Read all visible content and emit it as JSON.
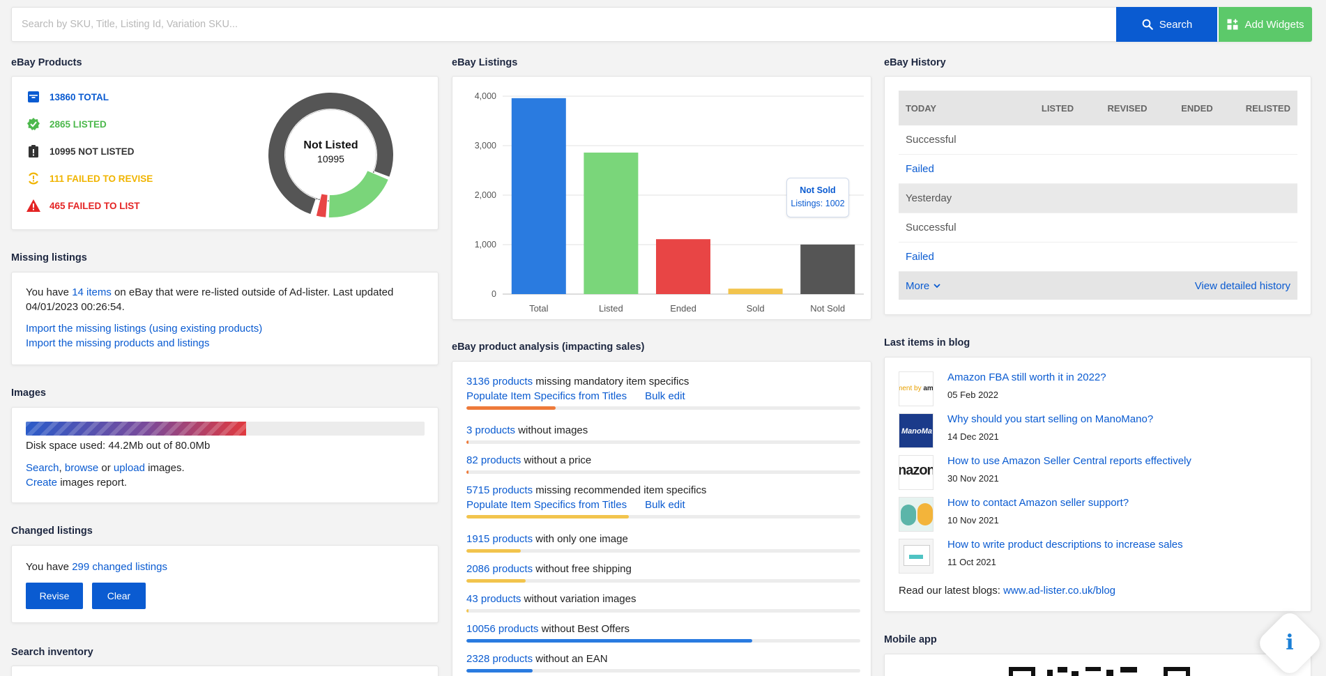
{
  "search": {
    "placeholder": "Search by SKU, Title, Listing Id, Variation SKU...",
    "search_label": "Search",
    "add_widgets_label": "Add Widgets"
  },
  "products": {
    "title": "eBay Products",
    "stats": [
      {
        "label": "13860 TOTAL",
        "color": "#0a5bd1",
        "icon": "archive-icon"
      },
      {
        "label": "2865 LISTED",
        "color": "#4cb84c",
        "icon": "check-badge-icon"
      },
      {
        "label": "10995 NOT LISTED",
        "color": "#333333",
        "icon": "clipboard-alert-icon"
      },
      {
        "label": "111 FAILED TO REVISE",
        "color": "#f0b400",
        "icon": "sync-alert-icon"
      },
      {
        "label": "465 FAILED TO LIST",
        "color": "#e42424",
        "icon": "warning-icon"
      }
    ],
    "donut": {
      "center_label": "Not Listed",
      "center_value": "10995",
      "segments": [
        {
          "name": "Listed",
          "value": 2865,
          "color": "#7ad57a"
        },
        {
          "name": "Failed to list",
          "value": 465,
          "color": "#e84545"
        },
        {
          "name": "Failed to revise",
          "value": 111,
          "color": "#f2c44d"
        },
        {
          "name": "Not listed",
          "value": 10995,
          "color": "#555555"
        }
      ]
    }
  },
  "missing": {
    "title": "Missing listings",
    "text_before": "You have ",
    "items_link": "14 items",
    "text_after": " on eBay that were re-listed outside of Ad-lister. Last updated 04/01/2023 00:26:54.",
    "link1": "Import the missing listings (using existing products)",
    "link2": "Import the missing products and listings"
  },
  "images": {
    "title": "Images",
    "used_fraction": 0.553,
    "disk_text": "Disk space used: 44.2Mb out of 80.0Mb",
    "search_link": "Search",
    "comma": ", ",
    "browse_link": "browse",
    "or_text": " or ",
    "upload_link": "upload",
    "images_text": " images.",
    "create_link": "Create",
    "report_text": " images report."
  },
  "changed": {
    "title": "Changed listings",
    "text_before": "You have ",
    "link": "299 changed listings",
    "revise_label": "Revise",
    "clear_label": "Clear"
  },
  "search_inventory": {
    "title": "Search inventory"
  },
  "listings": {
    "title": "eBay Listings",
    "tooltip": {
      "title": "Not Sold",
      "value": "Listings: 1002"
    }
  },
  "chart_data": {
    "type": "bar",
    "title": "",
    "categories": [
      "Total",
      "Listed",
      "Ended",
      "Sold",
      "Not Sold"
    ],
    "values": [
      3960,
      2860,
      1110,
      110,
      1002
    ],
    "colors": [
      "#2a7be0",
      "#7ad67a",
      "#e84545",
      "#f2c44d",
      "#555555"
    ],
    "yticks": [
      "0",
      "1,000",
      "2,000",
      "3,000",
      "4,000"
    ],
    "ylim": [
      0,
      4000
    ],
    "grid": true,
    "xlabel": "",
    "ylabel": ""
  },
  "analysis": {
    "title": "eBay product analysis (impacting sales)",
    "rows": [
      {
        "link": "3136 products",
        "text": " missing mandatory item specifics",
        "actions": [
          "Populate Item Specifics from Titles",
          "Bulk edit"
        ],
        "fraction": 0.226,
        "color": "#ee7a3a"
      },
      {
        "link": "3 products",
        "text": " without images",
        "actions": [],
        "fraction": 0.004,
        "color": "#ee7a3a"
      },
      {
        "link": "82 products",
        "text": " without a price",
        "actions": [],
        "fraction": 0.006,
        "color": "#ee7a3a"
      },
      {
        "link": "5715 products",
        "text": " missing recommended item specifics",
        "actions": [
          "Populate Item Specifics from Titles",
          "Bulk edit"
        ],
        "fraction": 0.412,
        "color": "#f2c44d"
      },
      {
        "link": "1915 products",
        "text": " with only one image",
        "actions": [],
        "fraction": 0.138,
        "color": "#f2c44d"
      },
      {
        "link": "2086 products",
        "text": " without free shipping",
        "actions": [],
        "fraction": 0.151,
        "color": "#f2c44d"
      },
      {
        "link": "43 products",
        "text": " without variation images",
        "actions": [],
        "fraction": 0.003,
        "color": "#f2c44d"
      },
      {
        "link": "10056 products",
        "text": " without Best Offers",
        "actions": [],
        "fraction": 0.726,
        "color": "#2a7be0"
      },
      {
        "link": "2328 products",
        "text": " without an EAN",
        "actions": [],
        "fraction": 0.168,
        "color": "#2a7be0"
      }
    ]
  },
  "history": {
    "title": "eBay History",
    "headers": [
      "TODAY",
      "LISTED",
      "REVISED",
      "ENDED",
      "RELISTED"
    ],
    "rows": [
      {
        "label": "Successful",
        "type": "plain"
      },
      {
        "label": "Failed",
        "type": "link"
      },
      {
        "label": "Yesterday",
        "type": "group"
      },
      {
        "label": "Successful",
        "type": "plain"
      },
      {
        "label": "Failed",
        "type": "link"
      }
    ],
    "more_label": "More",
    "detail_link": "View detailed history"
  },
  "blog": {
    "title": "Last items in blog",
    "items": [
      {
        "title": "Amazon FBA still worth it in 2022?",
        "date": "05 Feb 2022",
        "thumb": "ment by am"
      },
      {
        "title": "Why should you start selling on ManoMano?",
        "date": "14 Dec 2021",
        "thumb": "ManoMa"
      },
      {
        "title": "How to use Amazon Seller Central reports effectively",
        "date": "30 Nov 2021",
        "thumb": "nazon"
      },
      {
        "title": "How to contact Amazon seller support?",
        "date": "10 Nov 2021",
        "thumb": ""
      },
      {
        "title": "How to write product descriptions to increase sales",
        "date": "11 Oct 2021",
        "thumb": ""
      }
    ],
    "footer_text": "Read our latest blogs: ",
    "footer_link": "www.ad-lister.co.uk/blog"
  },
  "mobile": {
    "title": "Mobile app"
  },
  "info_icon": "info-icon"
}
